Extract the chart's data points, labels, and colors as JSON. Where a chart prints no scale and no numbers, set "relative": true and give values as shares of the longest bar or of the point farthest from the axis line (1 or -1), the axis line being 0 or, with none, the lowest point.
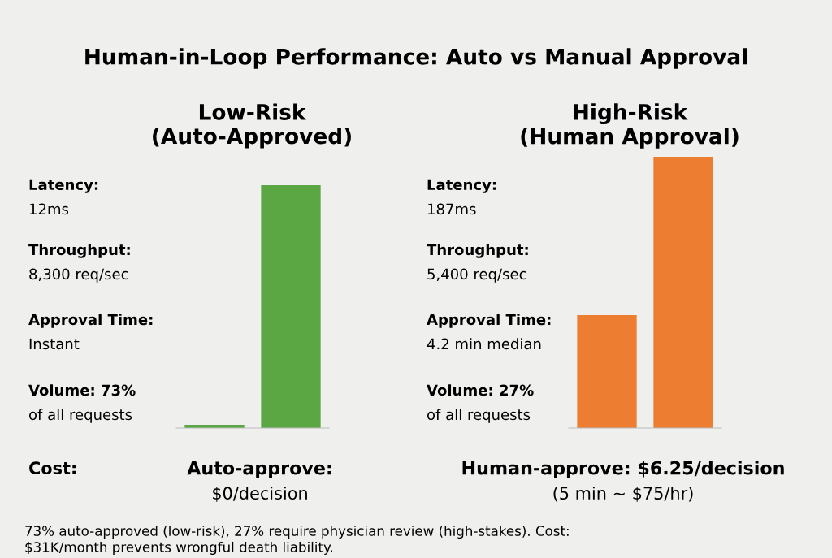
{
  "chart_data": [
    {
      "type": "other",
      "title": "Human-in-Loop Performance: Auto vs Manual Approval",
      "annotations": [
        "Cost:",
        "Auto-approve:\n$0/decision",
        "Human-approve: $6.25/decision\n(5 min ~ $75/hr)",
        "73% auto-approved (low-risk), 27% require physician review (high-stakes). Cost:\n$31K/month prevents wrongful death liability."
      ]
    },
    {
      "type": "bar",
      "title": "Low-Risk\n(Auto-Approved)",
      "relative": true,
      "categories": [
        null,
        null
      ],
      "values": [
        0.013,
        1
      ],
      "color": "#5ba744",
      "annotations": [
        "Latency:\n12ms",
        "Throughput:\n8,300 req/sec",
        "Approval Time:\nInstant",
        "Volume: 73%\nof all requests"
      ]
    },
    {
      "type": "bar",
      "title": "High-Risk\n(Human Approval)",
      "relative": true,
      "categories": [
        null,
        null
      ],
      "values": [
        0.416,
        1
      ],
      "color": "#ed7d31",
      "annotations": [
        "Latency:\n187ms",
        "Throughput:\n5,400 req/sec",
        "Approval Time:\n4.2 min median",
        "Volume: 27%\nof all requests"
      ]
    }
  ]
}
